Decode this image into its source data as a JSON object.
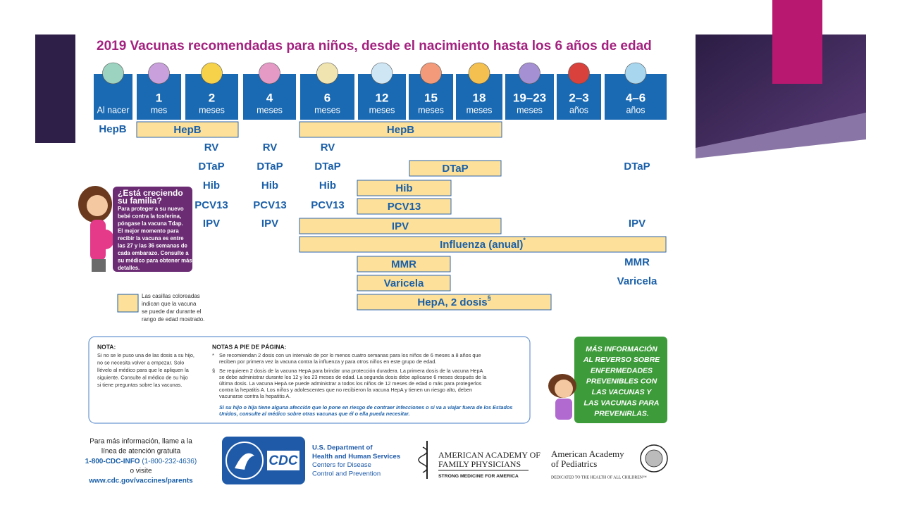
{
  "title": "2019 Vacunas recomendadas para niños, desde el nacimiento hasta los 6 años de edad",
  "columns": [
    {
      "unit": "Al nacer"
    },
    {
      "number": "1",
      "unit": "mes"
    },
    {
      "number": "2",
      "unit": "meses"
    },
    {
      "number": "4",
      "unit": "meses"
    },
    {
      "number": "6",
      "unit": "meses"
    },
    {
      "number": "12",
      "unit": "meses"
    },
    {
      "number": "15",
      "unit": "meses"
    },
    {
      "number": "18",
      "unit": "meses"
    },
    {
      "number": "19–23",
      "unit": "meses"
    },
    {
      "number": "2–3",
      "unit": "años"
    },
    {
      "number": "4–6",
      "unit": "años"
    }
  ],
  "rows": [
    [
      "HepB",
      "HepB",
      "HepB"
    ],
    [
      "RV",
      "RV",
      "RV"
    ],
    [
      "DTaP",
      "DTaP",
      "DTaP",
      "DTaP",
      "DTaP"
    ],
    [
      "Hib",
      "Hib",
      "Hib",
      "Hib"
    ],
    [
      "PCV13",
      "PCV13",
      "PCV13",
      "PCV13"
    ],
    [
      "IPV",
      "IPV",
      "IPV",
      "IPV"
    ],
    [
      "Influenza (anual)",
      "*"
    ],
    [
      "MMR",
      "MMR"
    ],
    [
      "Varicela",
      "Varicela"
    ],
    [
      "HepA, 2 dosis",
      "§"
    ]
  ],
  "pregnancy": {
    "heading": [
      "¿Está creciendo",
      "su familia?"
    ],
    "body": [
      "Para proteger a su nuevo",
      "bebé contra la tosferina,",
      "póngase la vacuna Tdap.",
      "El mejor momento para",
      "recibir la vacuna es entre",
      "las 27 y las 36 semanas de",
      "cada embarazo. Consulte a",
      "su médico para obtener más",
      "detalles."
    ]
  },
  "legend": [
    "Las casillas coloreadas",
    "indican que la vacuna",
    "se puede dar durante el",
    "rango de edad mostrado."
  ],
  "notes": {
    "title": "NOTA:",
    "body": [
      "Si no se le puso una de las dosis a su hijo,",
      "no se necesita volver a empezar. Solo",
      "llévelo al médico para que le apliquen la",
      "siguiente. Consulte al médico de su hijo",
      "si tiene preguntas sobre las vacunas."
    ],
    "footnotes_title": "NOTAS A PIE DE PÁGINA:",
    "footnotes": [
      {
        "symbol": "*",
        "lines": [
          "Se recomiendan 2 dosis con un intervalo de por lo menos cuatro semanas para los niños de 6 meses a 8 años que",
          "reciben por primera vez la vacuna contra la influenza y para otros niños en este grupo de edad."
        ]
      },
      {
        "symbol": "§",
        "lines": [
          "Se requieren 2 dosis de la vacuna HepA para brindar una protección duradera. La primera dosis de la vacuna HepA",
          "se debe administrar durante los 12 y los 23 meses de edad. La segunda dosis debe aplicarse 6 meses después de la",
          "última dosis. La vacuna HepA se puede administrar a todos los niños de 12 meses de edad o más para protegerlos",
          "contra la hepatitis A. Los niños y adolescentes que no recibieron la vacuna HepA y tienen un riesgo alto, deben",
          "vacunarse contra la hepatitis A."
        ]
      }
    ],
    "italic": [
      "Si su hijo o hija tiene alguna afección que lo pone en riesgo de contraer infecciones o si va a viajar fuera de los Estados",
      "Unidos, consulte al médico sobre otras vacunas que él o ella pueda necesitar."
    ]
  },
  "more_info": [
    "MÁS INFORMACIÓN",
    "AL REVERSO SOBRE",
    "ENFERMEDADES",
    "PREVENIBLES CON",
    "LAS VACUNAS Y",
    "LAS VACUNAS PARA",
    "PREVENIRLAS."
  ],
  "contact": {
    "lines": [
      "Para más información, llame a la",
      "línea de atención gratuita"
    ],
    "hotline": "1-800-CDC-INFO",
    "phone": " (1-800-232-4636)",
    "visit": "o visite",
    "url": "www.cdc.gov/vaccines/parents"
  },
  "cdc": {
    "logo": "CDC",
    "lines": [
      "U.S. Department of",
      "Health and Human Services",
      "Centers for Disease",
      "Control and Prevention"
    ]
  },
  "aafp": {
    "lines": [
      "AMERICAN ACADEMY OF",
      "FAMILY PHYSICIANS"
    ],
    "tagline": "STRONG MEDICINE FOR AMERICA"
  },
  "aap": {
    "lines": [
      "American Academy",
      "of Pediatrics"
    ],
    "tagline": "DEDICATED TO THE HEALTH OF ALL CHILDREN™"
  }
}
